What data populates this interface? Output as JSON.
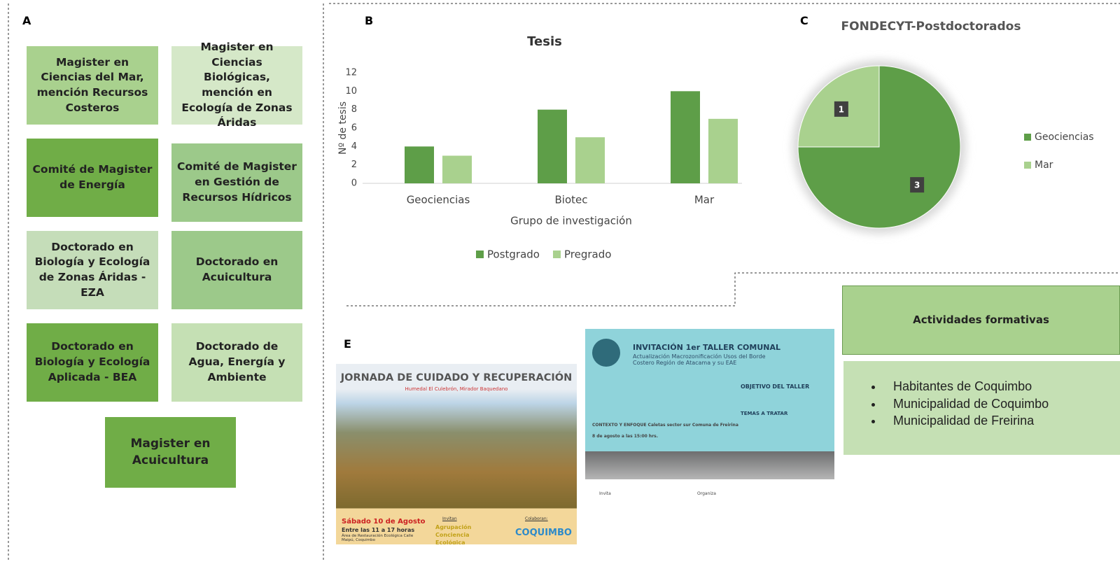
{
  "panel_labels": {
    "a": "A",
    "b": "B",
    "c": "C",
    "e": "E"
  },
  "programs": [
    "Magister en Ciencias del Mar, mención Recursos Costeros",
    "Magister en Ciencias Biológicas, mención en Ecología de Zonas Áridas",
    "Comité de Magister de Energía",
    "Comité de Magister en Gestión de Recursos Hídricos",
    "Doctorado en Biología y Ecología de Zonas Áridas - EZA",
    "Doctorado en Acuicultura",
    "Doctorado en Biología y Ecología Aplicada - BEA",
    "Doctorado de Agua, Energía y Ambiente",
    "Magister en Acuicultura"
  ],
  "chart_data": [
    {
      "type": "bar",
      "title": "Tesis",
      "y_label": "Nº de tesis",
      "x_label": "Grupo de investigación",
      "categories": [
        "Geociencias",
        "Biotec",
        "Mar"
      ],
      "series": [
        {
          "name": "Postgrado",
          "color": "#5e9e48",
          "values": [
            4,
            8,
            10
          ]
        },
        {
          "name": "Pregrado",
          "color": "#a9d18e",
          "values": [
            3,
            5,
            7
          ]
        }
      ],
      "ylim": [
        0,
        12
      ],
      "yticks": [
        0,
        2,
        4,
        6,
        8,
        10,
        12
      ],
      "grid": false,
      "legend": "bottom"
    },
    {
      "type": "pie",
      "title": "FONDECYT-Postdoctorados",
      "categories": [
        "Geociencias",
        "Mar"
      ],
      "values": [
        3,
        1
      ],
      "colors": [
        "#5e9e48",
        "#a9d18e"
      ],
      "legend": "right"
    }
  ],
  "activities": {
    "title": "Actividades formativas",
    "items": [
      "Habitantes de Coquimbo",
      "Municipalidad de Coquimbo",
      "Municipalidad de Freirina"
    ]
  },
  "posters": [
    {
      "title": "JORNADA DE CUIDADO Y RECUPERACIÓN",
      "subtitle": "Humedal El Culebrón, Mirador Baquedano",
      "date": "Sábado 10 de Agosto",
      "hours": "Entre las 11 a 17 horas",
      "place": "Área de Restauración Ecológica Calle Maipú, Coquimbo",
      "invite_label": "Invitan",
      "organizer": "Agrupación Conciencia Ecológica",
      "collab_label": "Colaboran:",
      "collab": "COQUIMBO"
    },
    {
      "title": "INVITACIÓN 1er TALLER COMUNAL",
      "subtitle": "Actualización Macrozonificación Usos del Borde Costero Región de Atacama y su EAE",
      "objective": "OBJETIVO DEL TALLER",
      "topics": "TEMAS A TRATAR",
      "context": "CONTEXTO Y ENFOQUE  Caletas sector sur Comuna de Freirina",
      "date": "8 de agosto a las 15:00 hrs.",
      "invite": "Invita",
      "organize": "Organiza"
    }
  ]
}
